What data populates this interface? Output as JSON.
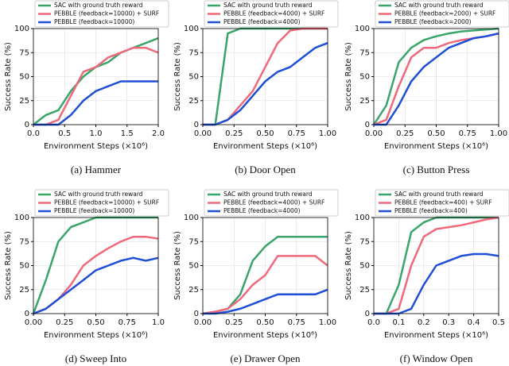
{
  "chart_data": [
    {
      "type": "line",
      "caption": "(a) Hammer",
      "xlabel": "Environment Steps (×10⁶)",
      "ylabel": "Success Rate (%)",
      "x": [
        0,
        0.2,
        0.4,
        0.6,
        0.8,
        1.0,
        1.2,
        1.4,
        1.6,
        1.8,
        2.0
      ],
      "series": [
        {
          "name": "SAC with ground truth reward",
          "color": "#3aa56a",
          "values": [
            0,
            10,
            15,
            35,
            50,
            60,
            65,
            75,
            80,
            85,
            90
          ]
        },
        {
          "name": "PEBBLE (feedback=10000) + SURF",
          "color": "#f0697a",
          "values": [
            0,
            0,
            5,
            30,
            55,
            60,
            70,
            75,
            80,
            80,
            75
          ]
        },
        {
          "name": "PEBBLE (feedback=10000)",
          "color": "#1f4fd6",
          "values": [
            0,
            0,
            0,
            10,
            25,
            35,
            40,
            45,
            45,
            45,
            45
          ]
        }
      ],
      "xlim": [
        0,
        2
      ],
      "xticks": [
        {
          "value": 0,
          "label": "0.0"
        },
        0.5,
        {
          "value": 1,
          "label": "1.0"
        },
        1.5,
        {
          "value": 2,
          "label": "2.0"
        }
      ],
      "ylim": [
        0,
        100
      ],
      "yticks": [
        0,
        25,
        50,
        75,
        100
      ],
      "grid": true,
      "legend": "upper left"
    },
    {
      "type": "line",
      "caption": "(b) Door Open",
      "xlabel": "Environment Steps (×10⁶)",
      "ylabel": "Success Rate (%)",
      "x": [
        0,
        0.1,
        0.2,
        0.3,
        0.4,
        0.5,
        0.6,
        0.7,
        0.8,
        0.9,
        1.0
      ],
      "series": [
        {
          "name": "SAC with ground truth reward",
          "color": "#3aa56a",
          "values": [
            0,
            0,
            95,
            100,
            100,
            100,
            100,
            100,
            100,
            100,
            100
          ]
        },
        {
          "name": "PEBBLE (feedback=4000) + SURF",
          "color": "#f0697a",
          "values": [
            0,
            0,
            5,
            20,
            35,
            60,
            85,
            98,
            100,
            100,
            100
          ]
        },
        {
          "name": "PEBBLE (feedback=4000)",
          "color": "#1f4fd6",
          "values": [
            0,
            0,
            5,
            15,
            30,
            45,
            55,
            60,
            70,
            80,
            85
          ]
        }
      ],
      "xlim": [
        0,
        1
      ],
      "xticks": [
        {
          "value": 0,
          "label": "0.00"
        },
        0.25,
        {
          "value": 0.5,
          "label": "0.50"
        },
        0.75,
        {
          "value": 1,
          "label": "1.00"
        }
      ],
      "ylim": [
        0,
        100
      ],
      "yticks": [
        0,
        25,
        50,
        75,
        100
      ],
      "grid": true,
      "legend": "upper left"
    },
    {
      "type": "line",
      "caption": "(c) Button Press",
      "xlabel": "Environment Steps (×10⁶)",
      "ylabel": "Success Rate (%)",
      "x": [
        0,
        0.1,
        0.2,
        0.3,
        0.4,
        0.5,
        0.6,
        0.7,
        0.8,
        0.9,
        1.0
      ],
      "series": [
        {
          "name": "SAC with ground truth reward",
          "color": "#3aa56a",
          "values": [
            0,
            20,
            65,
            80,
            88,
            92,
            95,
            97,
            98,
            99,
            100
          ]
        },
        {
          "name": "PEBBLE (feedback=2000) + SURF",
          "color": "#f0697a",
          "values": [
            0,
            5,
            40,
            70,
            80,
            80,
            85,
            88,
            90,
            92,
            95
          ]
        },
        {
          "name": "PEBBLE (feedback=2000)",
          "color": "#1f4fd6",
          "values": [
            0,
            0,
            20,
            45,
            60,
            70,
            80,
            85,
            90,
            92,
            95
          ]
        }
      ],
      "xlim": [
        0,
        1
      ],
      "xticks": [
        {
          "value": 0,
          "label": "0.00"
        },
        0.25,
        {
          "value": 0.5,
          "label": "0.50"
        },
        0.75,
        {
          "value": 1,
          "label": "1.00"
        }
      ],
      "ylim": [
        0,
        100
      ],
      "yticks": [
        0,
        25,
        50,
        75,
        100
      ],
      "grid": true,
      "legend": "upper left"
    },
    {
      "type": "line",
      "caption": "(d) Sweep Into",
      "xlabel": "Environment Steps (×10⁶)",
      "ylabel": "Success Rate (%)",
      "x": [
        0,
        0.1,
        0.2,
        0.3,
        0.4,
        0.5,
        0.6,
        0.7,
        0.8,
        0.9,
        1.0
      ],
      "series": [
        {
          "name": "SAC with ground truth reward",
          "color": "#3aa56a",
          "values": [
            0,
            35,
            75,
            90,
            95,
            100,
            100,
            100,
            100,
            100,
            100
          ]
        },
        {
          "name": "PEBBLE (feedback=10000) + SURF",
          "color": "#f0697a",
          "values": [
            0,
            5,
            15,
            30,
            50,
            60,
            68,
            75,
            80,
            80,
            78
          ]
        },
        {
          "name": "PEBBLE (feedback=10000)",
          "color": "#1f4fd6",
          "values": [
            0,
            5,
            15,
            25,
            35,
            45,
            50,
            55,
            58,
            55,
            58
          ]
        }
      ],
      "xlim": [
        0,
        1
      ],
      "xticks": [
        {
          "value": 0,
          "label": "0.00"
        },
        0.25,
        {
          "value": 0.5,
          "label": "0.50"
        },
        0.75,
        {
          "value": 1,
          "label": "1.0"
        }
      ],
      "ylim": [
        0,
        100
      ],
      "yticks": [
        0,
        25,
        50,
        75,
        100
      ],
      "grid": true,
      "legend": "upper left"
    },
    {
      "type": "line",
      "caption": "(e) Drawer Open",
      "xlabel": "Environment Steps (×10⁶)",
      "ylabel": "Success Rate (%)",
      "x": [
        0,
        0.1,
        0.2,
        0.3,
        0.4,
        0.5,
        0.6,
        0.7,
        0.8,
        0.9,
        1.0
      ],
      "series": [
        {
          "name": "SAC with ground truth reward",
          "color": "#3aa56a",
          "values": [
            0,
            2,
            5,
            20,
            55,
            70,
            80,
            80,
            80,
            80,
            80
          ]
        },
        {
          "name": "PEBBLE (feedback=4000) + SURF",
          "color": "#f0697a",
          "values": [
            0,
            2,
            5,
            15,
            30,
            40,
            60,
            60,
            60,
            60,
            50
          ]
        },
        {
          "name": "PEBBLE (feedback=4000)",
          "color": "#1f4fd6",
          "values": [
            0,
            0,
            2,
            5,
            10,
            15,
            20,
            20,
            20,
            20,
            25
          ]
        }
      ],
      "xlim": [
        0,
        1
      ],
      "xticks": [
        {
          "value": 0,
          "label": "0.00"
        },
        0.25,
        {
          "value": 0.5,
          "label": "0.50"
        },
        0.75,
        {
          "value": 1,
          "label": "1.00"
        }
      ],
      "ylim": [
        0,
        100
      ],
      "yticks": [
        0,
        25,
        50,
        75,
        100
      ],
      "grid": true,
      "legend": "upper left"
    },
    {
      "type": "line",
      "caption": "(f) Window Open",
      "xlabel": "Environment Steps (×10⁶)",
      "ylabel": "Success Rate (%)",
      "x": [
        0,
        0.05,
        0.1,
        0.15,
        0.2,
        0.25,
        0.3,
        0.35,
        0.4,
        0.45,
        0.5
      ],
      "series": [
        {
          "name": "SAC with ground truth reward",
          "color": "#3aa56a",
          "values": [
            0,
            0,
            30,
            85,
            95,
            100,
            100,
            100,
            100,
            100,
            100
          ]
        },
        {
          "name": "PEBBLE (feedback=400) + SURF",
          "color": "#f0697a",
          "values": [
            0,
            0,
            5,
            50,
            80,
            88,
            90,
            92,
            95,
            98,
            100
          ]
        },
        {
          "name": "PEBBLE (feedback=400)",
          "color": "#1f4fd6",
          "values": [
            0,
            0,
            0,
            5,
            30,
            50,
            55,
            60,
            62,
            62,
            60
          ]
        }
      ],
      "xlim": [
        0,
        0.5
      ],
      "xticks": [
        {
          "value": 0,
          "label": "0.0"
        },
        0.1,
        0.2,
        0.3,
        0.4,
        0.5
      ],
      "ylim": [
        0,
        100
      ],
      "yticks": [
        0,
        25,
        50,
        75,
        100
      ],
      "grid": true,
      "legend": "upper left"
    }
  ]
}
